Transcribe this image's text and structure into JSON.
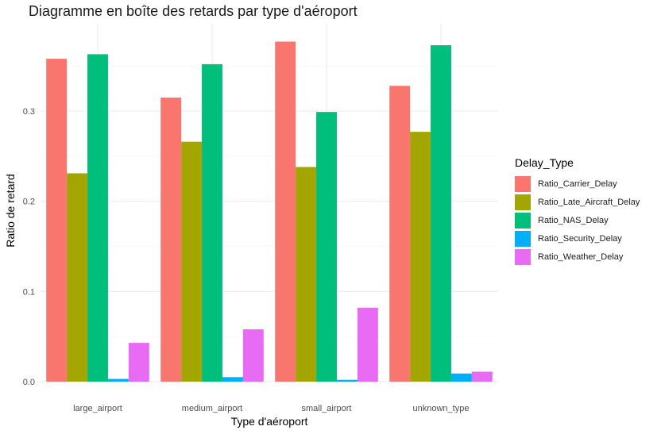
{
  "chart_data": {
    "type": "bar",
    "title": "Diagramme en boîte des retards par type d'aéroport",
    "xlabel": "Type d'aéroport",
    "ylabel": "Ratio de retard",
    "categories": [
      "large_airport",
      "medium_airport",
      "small_airport",
      "unknown_type"
    ],
    "ylim": [
      0,
      0.38
    ],
    "yticks": [
      0.0,
      0.1,
      0.2,
      0.3
    ],
    "ytick_labels": [
      "0.0",
      "0.1",
      "0.2",
      "0.3"
    ],
    "grid": true,
    "legend_title": "Delay_Type",
    "legend_position": "right",
    "series": [
      {
        "name": "Ratio_Carrier_Delay",
        "color": "#F8766D",
        "values": [
          0.358,
          0.315,
          0.377,
          0.328
        ]
      },
      {
        "name": "Ratio_Late_Aircraft_Delay",
        "color": "#A3A500",
        "values": [
          0.231,
          0.266,
          0.238,
          0.277
        ]
      },
      {
        "name": "Ratio_NAS_Delay",
        "color": "#00BF7D",
        "values": [
          0.363,
          0.352,
          0.299,
          0.373
        ]
      },
      {
        "name": "Ratio_Security_Delay",
        "color": "#00B0F6",
        "values": [
          0.003,
          0.005,
          0.002,
          0.009
        ]
      },
      {
        "name": "Ratio_Weather_Delay",
        "color": "#E76BF3",
        "values": [
          0.043,
          0.058,
          0.082,
          0.011
        ]
      }
    ]
  }
}
